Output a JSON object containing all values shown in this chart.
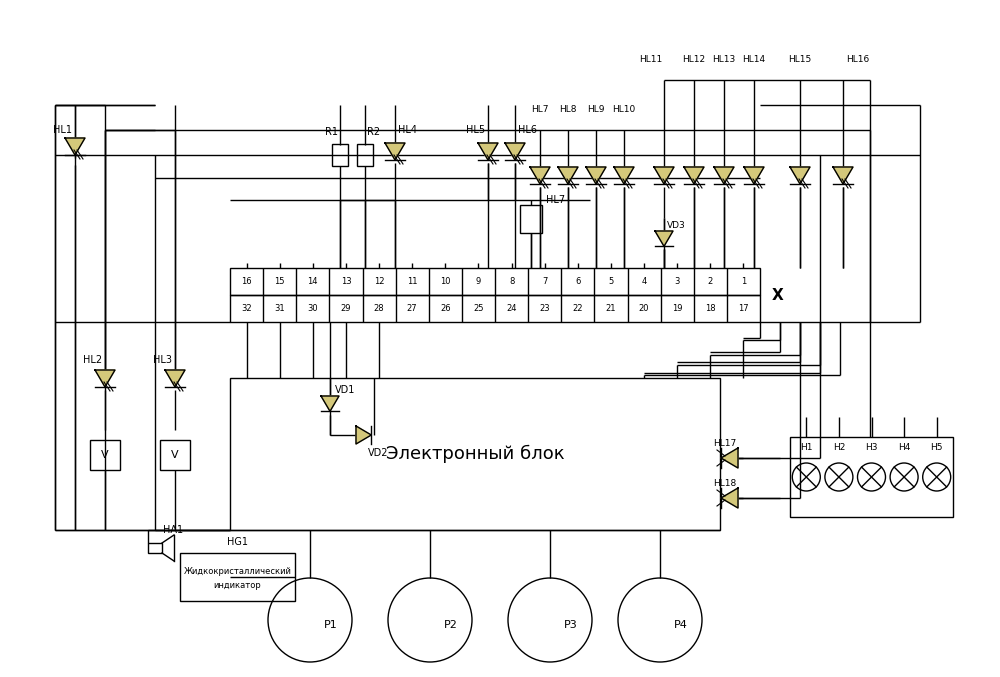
{
  "bg_color": "#ffffff",
  "line_color": "#000000",
  "led_color": "#d4c87a",
  "fig_width": 10.0,
  "fig_height": 6.77,
  "connector_top_row": [
    "16",
    "15",
    "14",
    "13",
    "12",
    "11",
    "10",
    "9",
    "8",
    "7",
    "6",
    "5",
    "4",
    "3",
    "2",
    "1"
  ],
  "connector_bot_row": [
    "32",
    "31",
    "30",
    "29",
    "28",
    "27",
    "26",
    "25",
    "24",
    "23",
    "22",
    "21",
    "20",
    "19",
    "18",
    "17"
  ],
  "connector_label": "X",
  "eb_label": "Электронный блок",
  "hg1_label": "HG1",
  "hg1_line1": "Жидкокристаллический",
  "hg1_line2": "индикатор",
  "gauges": [
    "P1",
    "P2",
    "P3",
    "P4"
  ],
  "lamps_h": [
    "H1",
    "H2",
    "H3",
    "H4",
    "H5"
  ]
}
